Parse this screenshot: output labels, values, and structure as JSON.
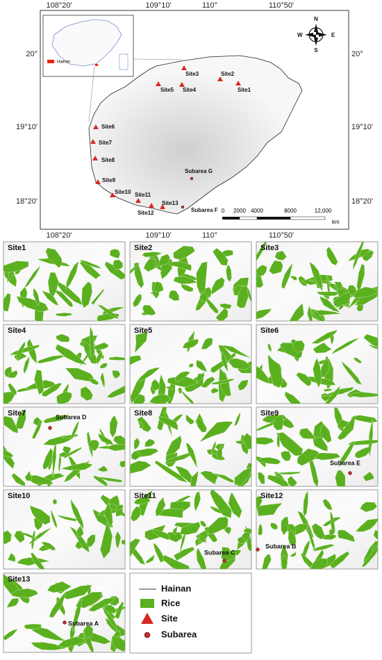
{
  "map": {
    "lon_labels": [
      "108°20'",
      "109°10'",
      "110°",
      "110°50'"
    ],
    "lat_labels": [
      "20°",
      "19°10'",
      "18°20'"
    ],
    "inset_legend": "Hainan",
    "compass": {
      "n": "N",
      "s": "S",
      "e": "E",
      "w": "W"
    },
    "sites": [
      "Site1",
      "Site2",
      "Site3",
      "Site4",
      "Site5",
      "Site6",
      "Site7",
      "Site8",
      "Site9",
      "Site10",
      "Site11",
      "Site12",
      "Site13"
    ],
    "subareas": [
      "Subarea G",
      "Subarea F"
    ],
    "scale": {
      "ticks": [
        "0",
        "2000",
        "4000",
        "8000",
        "12,000"
      ],
      "unit": "km"
    }
  },
  "panels": [
    {
      "title": "Site1"
    },
    {
      "title": "Site2"
    },
    {
      "title": "Site3"
    },
    {
      "title": "Site4"
    },
    {
      "title": "Site5"
    },
    {
      "title": "Site6"
    },
    {
      "title": "Site7",
      "subarea": "Subarea D"
    },
    {
      "title": "Site8"
    },
    {
      "title": "Site9",
      "subarea": "Subarea E"
    },
    {
      "title": "Site10"
    },
    {
      "title": "Site11",
      "subarea": "Subarea C"
    },
    {
      "title": "Site12",
      "subarea": "Subarea B"
    },
    {
      "title": "Site13",
      "subarea": "Subarea A"
    }
  ],
  "legend": [
    "Hainan",
    "Rice",
    "Site",
    "Subarea"
  ]
}
